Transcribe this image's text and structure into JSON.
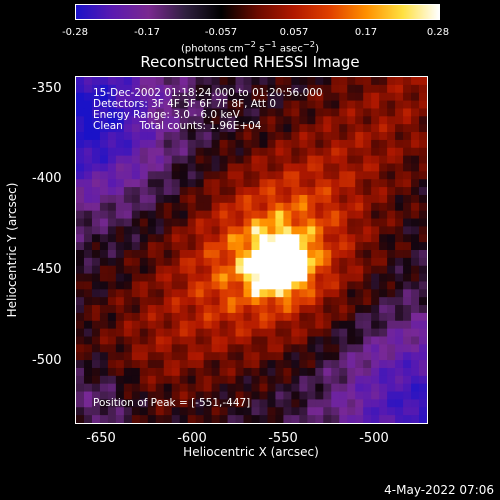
{
  "colorbar": {
    "ticks": [
      "-0.28",
      "-0.17",
      "-0.057",
      "0.057",
      "0.17",
      "0.28"
    ],
    "units_html": "(photons cm<sup>−2</sup> s<sup>−1</sup> asec<sup>−2</sup>)",
    "colors": [
      "#1a12c8",
      "#5a1ab0",
      "#7a2890",
      "#302040",
      "#000000",
      "#6a0a00",
      "#b01800",
      "#e04000",
      "#ff9000",
      "#ffe040",
      "#ffffff"
    ]
  },
  "title": "Reconstructed RHESSI Image",
  "info": {
    "line1": "15-Dec-2002 01:18:24.000 to 01:20:56.000",
    "line2": "Detectors: 3F 4F 5F 6F 7F 8F, Att 0",
    "line3": "Energy Range: 3.0 - 6.0 keV",
    "line4": "Clean     Total counts: 1.96E+04",
    "peak": "Position of Peak = [-551,-447]"
  },
  "axes": {
    "xlabel": "Heliocentric X (arcsec)",
    "ylabel": "Heliocentric Y (arcsec)",
    "yticks": [
      "-350",
      "-400",
      "-450",
      "-500"
    ],
    "xticks": [
      "-650",
      "-600",
      "-550",
      "-500"
    ]
  },
  "chart_data": {
    "type": "heatmap",
    "title": "Reconstructed RHESSI Image",
    "xlabel": "Heliocentric X (arcsec)",
    "ylabel": "Heliocentric Y (arcsec)",
    "xlim": [
      -665,
      -470
    ],
    "ylim": [
      -535,
      -343
    ],
    "peak": {
      "x": -551,
      "y": -447
    },
    "colorbar_range": [
      -0.28,
      0.28
    ]
  },
  "timestamp": "4-May-2022 07:06"
}
